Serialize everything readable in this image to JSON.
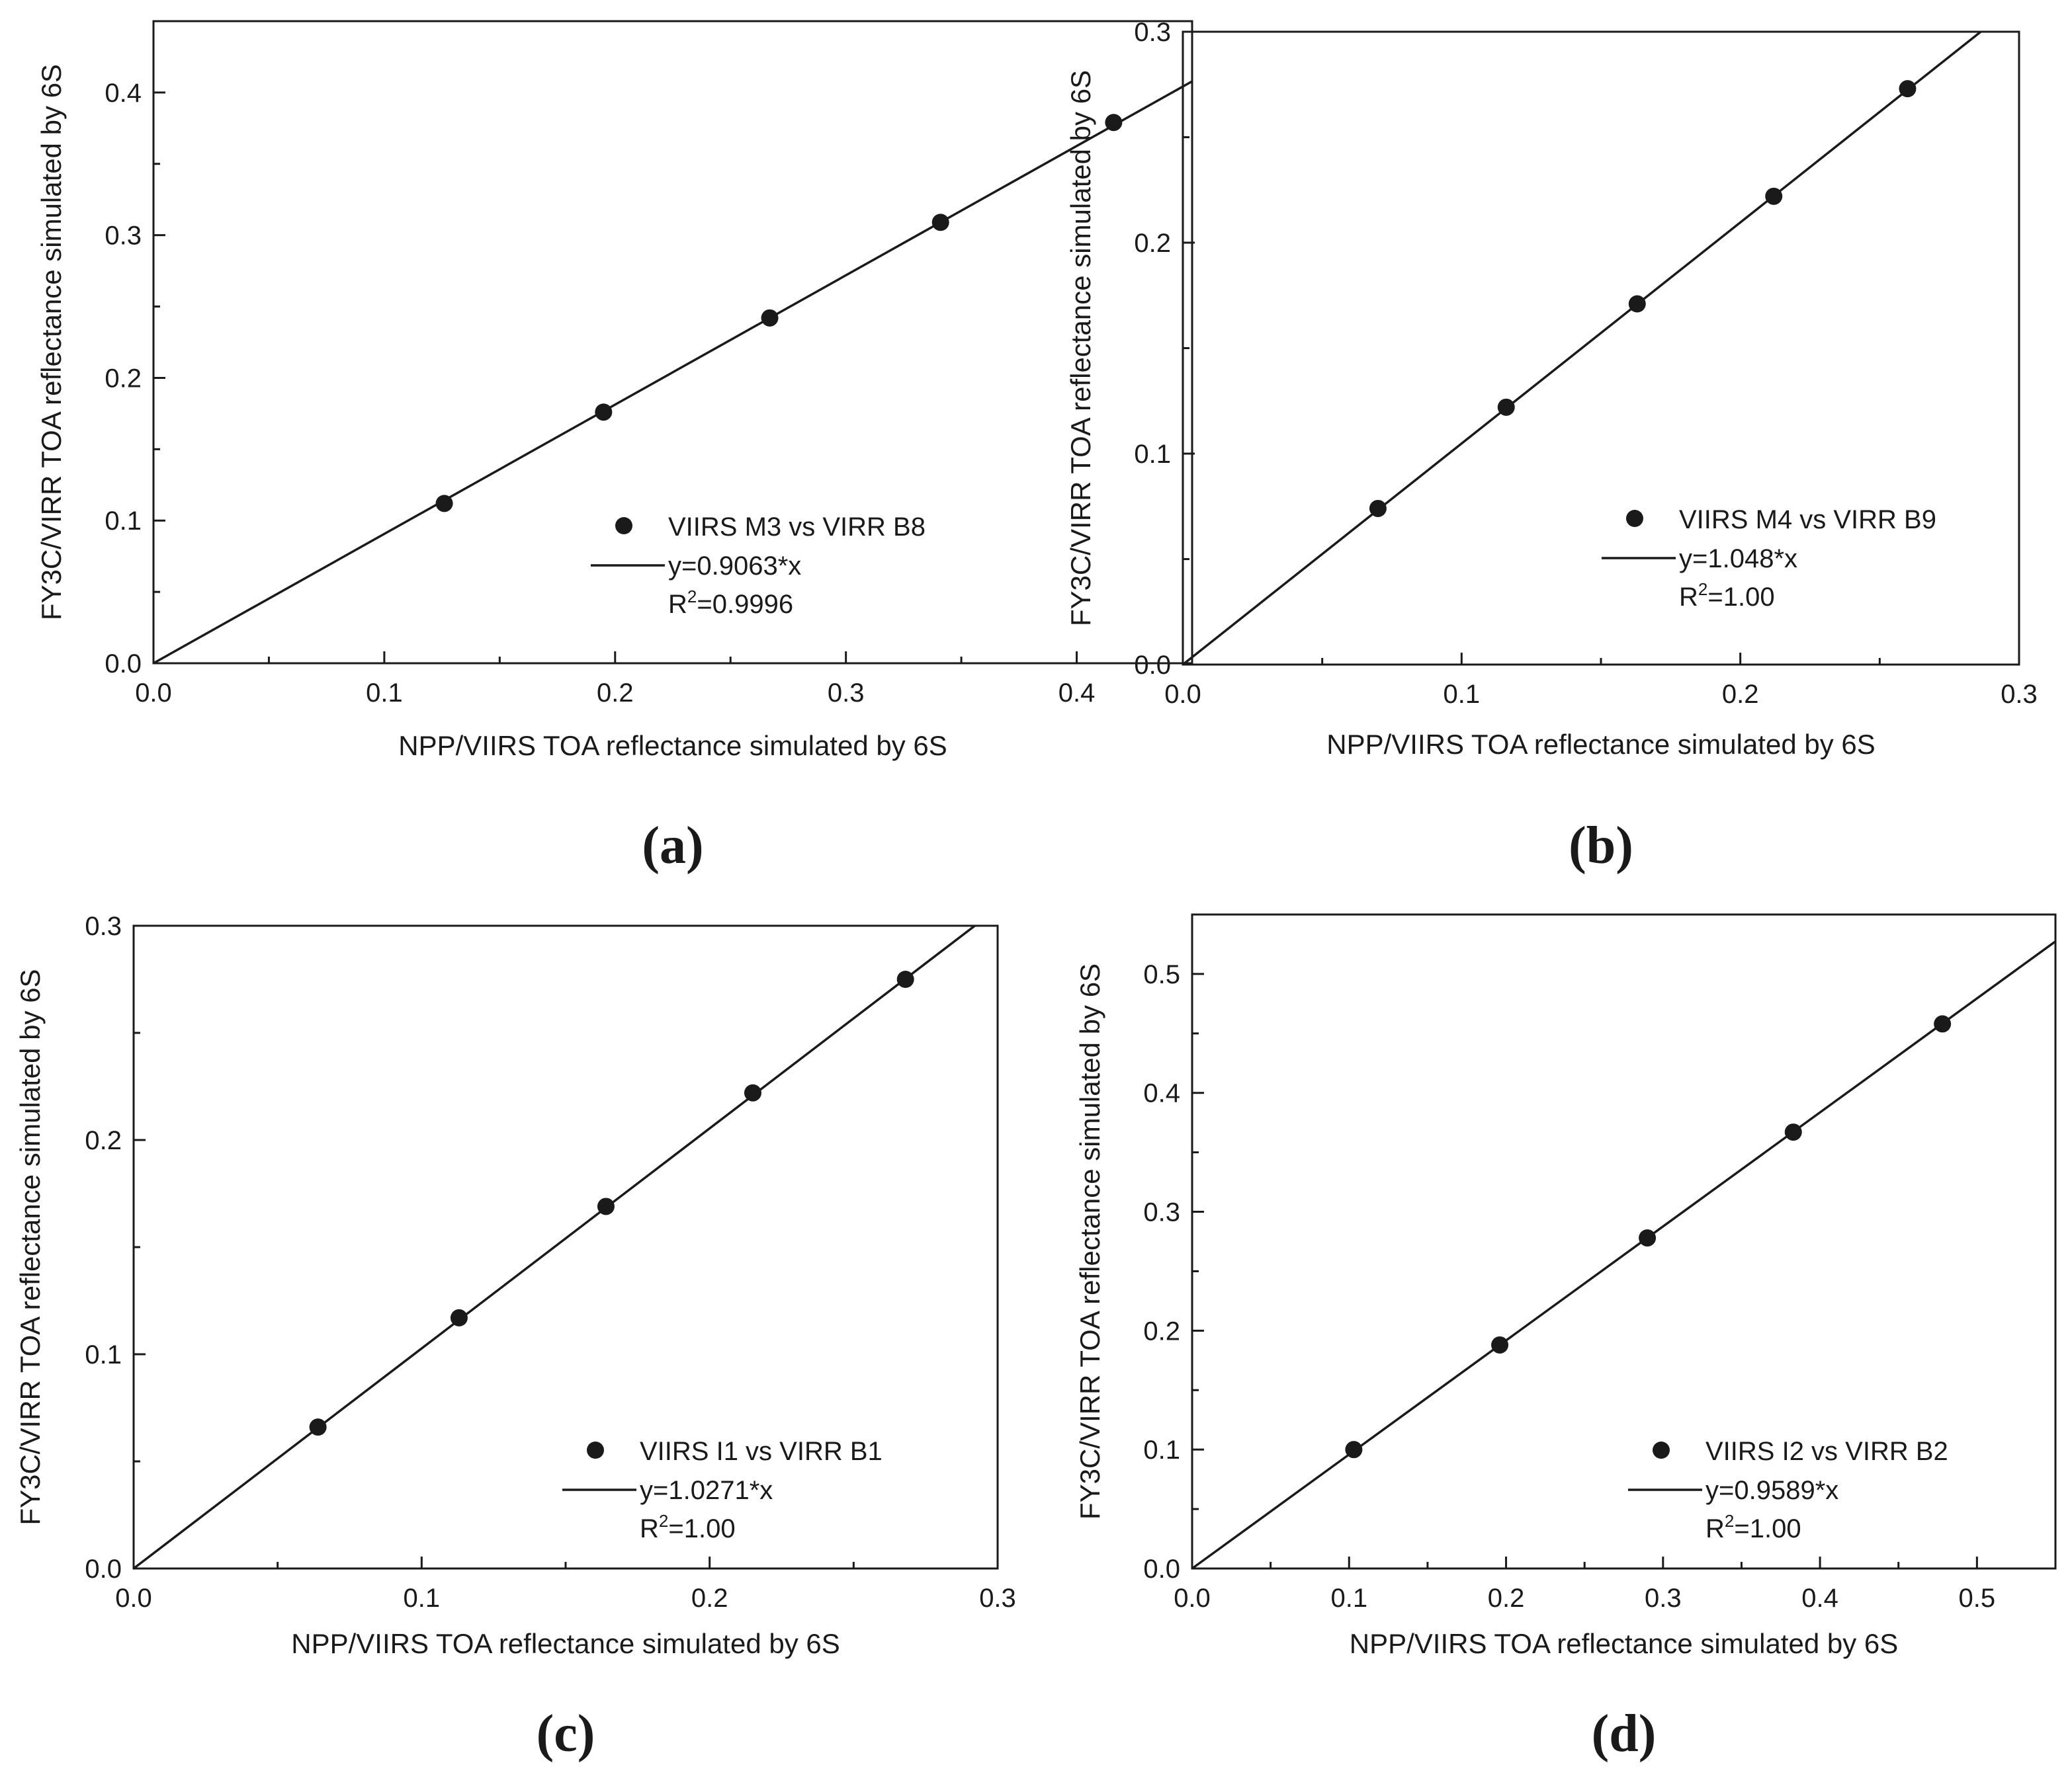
{
  "chart_data": [
    {
      "type": "scatter",
      "panel_label": "(a)",
      "xlabel": "NPP/VIIRS TOA reflectance simulated by 6S",
      "ylabel": "FY3C/VIRR TOA reflectance simulated by 6S",
      "xlim": [
        0,
        0.45
      ],
      "ylim": [
        0,
        0.45
      ],
      "xticks": [
        "0.0",
        "0.1",
        "0.2",
        "0.3",
        "0.4"
      ],
      "yticks": [
        "0.0",
        "0.1",
        "0.2",
        "0.3",
        "0.4"
      ],
      "grid": false,
      "legend_position": "bottom-right",
      "series": [
        {
          "name": "VIIRS M3 vs VIRR B8",
          "kind": "points",
          "x": [
            0.126,
            0.195,
            0.267,
            0.341,
            0.416
          ],
          "y": [
            0.112,
            0.176,
            0.242,
            0.309,
            0.379
          ]
        },
        {
          "name": "y=0.9063*x",
          "kind": "fit",
          "slope": 0.9063
        }
      ],
      "r2_prefix": "R",
      "r2_exp": "2",
      "r2_value": "=0.9996"
    },
    {
      "type": "scatter",
      "panel_label": "(b)",
      "xlabel": "NPP/VIIRS TOA reflectance simulated by 6S",
      "ylabel": "FY3C/VIRR TOA reflectance simulated by 6S",
      "xlim": [
        0,
        0.3
      ],
      "ylim": [
        0,
        0.3
      ],
      "xticks": [
        "0.0",
        "0.1",
        "0.2",
        "0.3"
      ],
      "yticks": [
        "0.0",
        "0.1",
        "0.2",
        "0.3"
      ],
      "grid": false,
      "legend_position": "bottom-right",
      "series": [
        {
          "name": "VIIRS M4 vs VIRR B9",
          "kind": "points",
          "x": [
            0.07,
            0.116,
            0.163,
            0.212,
            0.26
          ],
          "y": [
            0.074,
            0.122,
            0.171,
            0.222,
            0.273
          ]
        },
        {
          "name": "y=1.048*x",
          "kind": "fit",
          "slope": 1.048
        }
      ],
      "r2_prefix": "R",
      "r2_exp": "2",
      "r2_value": "=1.00"
    },
    {
      "type": "scatter",
      "panel_label": "(c)",
      "xlabel": "NPP/VIIRS TOA reflectance simulated by 6S",
      "ylabel": "FY3C/VIRR TOA reflectance simulated by 6S",
      "xlim": [
        0,
        0.3
      ],
      "ylim": [
        0,
        0.3
      ],
      "xticks": [
        "0.0",
        "0.1",
        "0.2",
        "0.3"
      ],
      "yticks": [
        "0.0",
        "0.1",
        "0.2",
        "0.3"
      ],
      "grid": false,
      "legend_position": "bottom-right",
      "series": [
        {
          "name": "VIIRS I1 vs VIRR B1",
          "kind": "points",
          "x": [
            0.064,
            0.113,
            0.164,
            0.215,
            0.268
          ],
          "y": [
            0.066,
            0.117,
            0.169,
            0.222,
            0.275
          ]
        },
        {
          "name": "y=1.0271*x",
          "kind": "fit",
          "slope": 1.0271
        }
      ],
      "r2_prefix": "R",
      "r2_exp": "2",
      "r2_value": "=1.00"
    },
    {
      "type": "scatter",
      "panel_label": "(d)",
      "xlabel": "NPP/VIIRS TOA reflectance simulated by 6S",
      "ylabel": "FY3C/VIRR TOA reflectance simulated by 6S",
      "xlim": [
        0,
        0.55
      ],
      "ylim": [
        0,
        0.55
      ],
      "xticks": [
        "0.0",
        "0.1",
        "0.2",
        "0.3",
        "0.4",
        "0.5"
      ],
      "yticks": [
        "0.0",
        "0.1",
        "0.2",
        "0.3",
        "0.4",
        "0.5"
      ],
      "grid": false,
      "legend_position": "bottom-right",
      "series": [
        {
          "name": "VIIRS I2 vs VIRR B2",
          "kind": "points",
          "x": [
            0.103,
            0.196,
            0.29,
            0.383,
            0.478
          ],
          "y": [
            0.1,
            0.188,
            0.278,
            0.367,
            0.458
          ]
        },
        {
          "name": "y=0.9589*x",
          "kind": "fit",
          "slope": 0.9589
        }
      ],
      "r2_prefix": "R",
      "r2_exp": "2",
      "r2_value": "=1.00"
    }
  ]
}
